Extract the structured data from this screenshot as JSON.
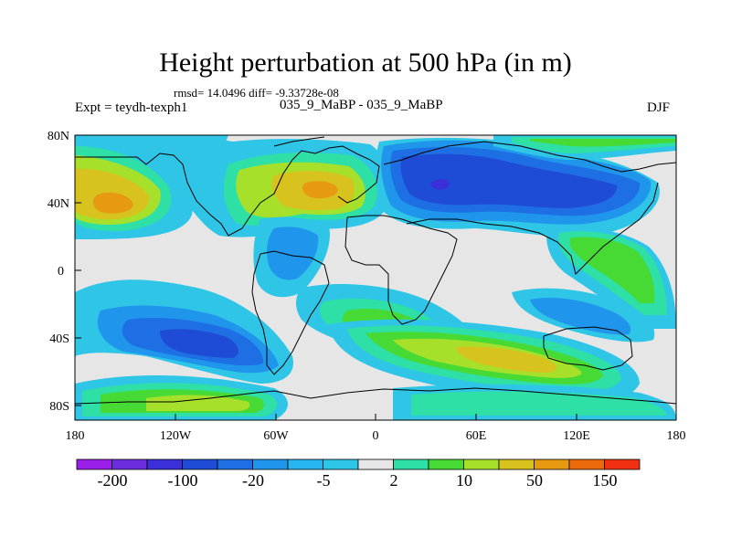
{
  "title": "Height perturbation at 500 hPa (in m)",
  "stats": "rmsd= 14.0496 diff= -9.33728e-08",
  "left_label": "Expt = teydh-texph1",
  "subtitle": "035_9_MaBP - 035_9_MaBP",
  "season": "DJF",
  "lat_ticks": [
    "80N",
    "40N",
    "0",
    "40S",
    "80S"
  ],
  "lon_ticks": [
    "180",
    "120W",
    "60W",
    "0",
    "60E",
    "120E",
    "180"
  ],
  "colorbar": {
    "colors": [
      "#9b1fe8",
      "#6a2ee0",
      "#3a2fd8",
      "#1f4cd6",
      "#1f6fe4",
      "#1f96ec",
      "#28b4ee",
      "#2ec5e6",
      "#e6e6e6",
      "#2ee0a6",
      "#47d934",
      "#a6e02b",
      "#d8c21d",
      "#e59a12",
      "#ec6a0c",
      "#f03010"
    ],
    "labels": [
      "-200",
      "-100",
      "-20",
      "-5",
      "2",
      "10",
      "50",
      "150"
    ]
  },
  "palette": {
    "neutral": "#e6e6e6",
    "cyan": "#2ec5e6",
    "cyan2": "#28b4ee",
    "blue1": "#1f96ec",
    "blue2": "#1f6fe4",
    "blue3": "#1f4cd6",
    "blue4": "#3a2fd8",
    "teal": "#2ee0a6",
    "green": "#47d934",
    "lime": "#a6e02b",
    "yellow": "#d8c21d",
    "orange": "#e59a12"
  }
}
